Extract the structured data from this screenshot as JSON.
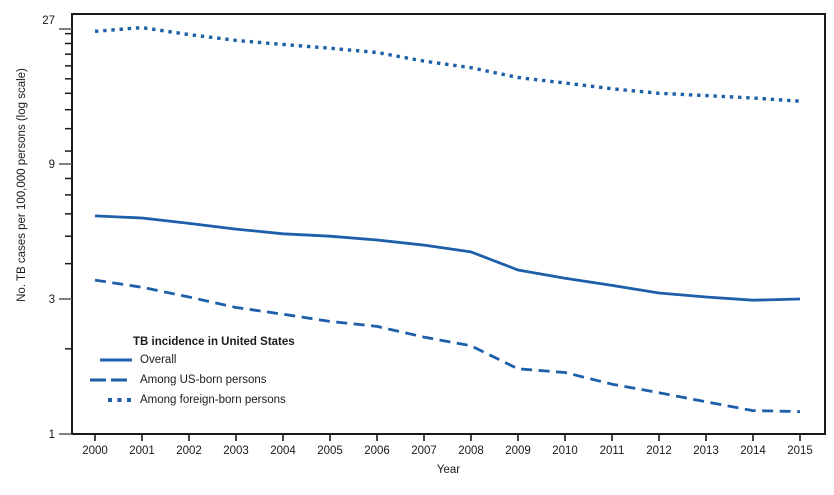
{
  "chart_data": {
    "type": "line",
    "title": "",
    "xlabel": "Year",
    "ylabel": "No. TB cases per 100,000 persons (log scale)",
    "y_scale": "log",
    "ylim": [
      1,
      27
    ],
    "xlim": [
      2000,
      2015
    ],
    "grid": false,
    "y_major_ticks": [
      1,
      3,
      9,
      27
    ],
    "y_minor_ticks": [
      2,
      4,
      5,
      6,
      7,
      8,
      10,
      12,
      14,
      16,
      18,
      20,
      22,
      24,
      26
    ],
    "x": [
      2000,
      2001,
      2002,
      2003,
      2004,
      2005,
      2006,
      2007,
      2008,
      2009,
      2010,
      2011,
      2012,
      2013,
      2014,
      2015
    ],
    "series": [
      {
        "name": "Overall",
        "style": "solid",
        "values": [
          5.9,
          5.8,
          5.55,
          5.3,
          5.1,
          5.0,
          4.85,
          4.65,
          4.4,
          3.8,
          3.55,
          3.35,
          3.15,
          3.05,
          2.97,
          3.0
        ]
      },
      {
        "name": "Among US-born persons",
        "style": "dashed",
        "values": [
          3.5,
          3.3,
          3.05,
          2.8,
          2.65,
          2.5,
          2.4,
          2.2,
          2.05,
          1.7,
          1.65,
          1.5,
          1.4,
          1.3,
          1.21,
          1.2
        ]
      },
      {
        "name": "Among foreign-born persons",
        "style": "dotted",
        "values": [
          26.5,
          27.3,
          25.8,
          24.6,
          23.8,
          23.1,
          22.3,
          20.8,
          19.7,
          18.2,
          17.4,
          16.6,
          16.0,
          15.7,
          15.4,
          15.0
        ]
      }
    ],
    "legend": {
      "title": "TB incidence in United States",
      "position": "inside-bottom-left"
    },
    "colors": {
      "line": "#1d5fa8",
      "axis": "#1a1a1a",
      "major_tick": "#555555"
    }
  }
}
